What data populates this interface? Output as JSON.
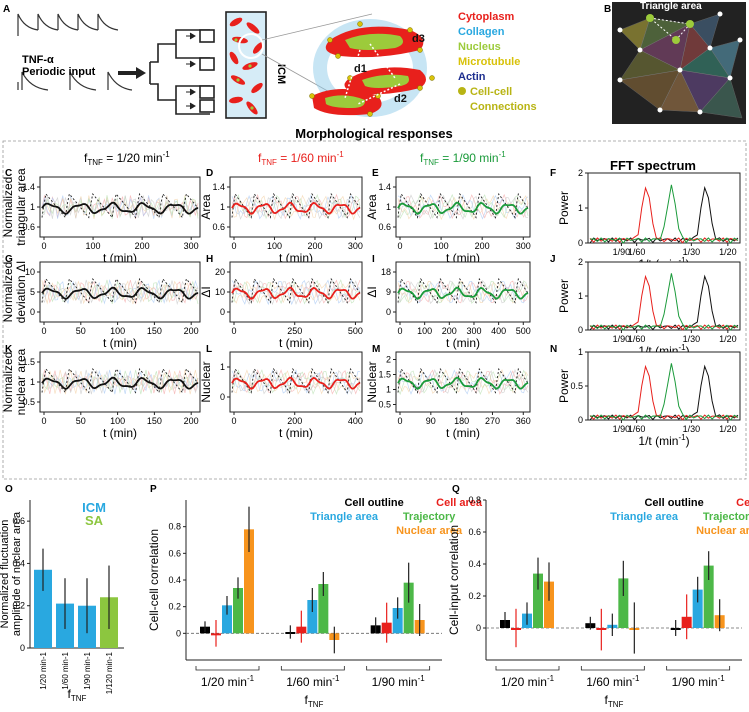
{
  "panel_labels": [
    "A",
    "B",
    "C",
    "D",
    "E",
    "F",
    "G",
    "H",
    "I",
    "J",
    "K",
    "L",
    "M",
    "N",
    "O",
    "P",
    "Q"
  ],
  "panel_a": {
    "input_label_1": "TNF-α",
    "input_label_2": "Periodic input",
    "chamber_label": "ICM",
    "legend": [
      {
        "text": "Cytoplasm",
        "color": "#e8201c"
      },
      {
        "text": "Collagen",
        "color": "#29a8e0"
      },
      {
        "text": "Nucleus",
        "color": "#9ccb3b"
      },
      {
        "text": "Microtubule",
        "color": "#d8c20a"
      },
      {
        "text": "Actin",
        "color": "#1d2f8f"
      },
      {
        "text": "Cell-cell",
        "color": "#b8b414"
      },
      {
        "text": "Connections",
        "color": "#b8b414"
      }
    ],
    "distances": [
      "d1",
      "d2",
      "d3"
    ]
  },
  "panel_b": {
    "title": "Triangle area"
  },
  "section_title": "Morphological responses",
  "col_titles": [
    {
      "prefix": "f",
      "sub": "TNF",
      "text": " = 1/20 min",
      "sup": "-1",
      "color": "#000000"
    },
    {
      "prefix": "f",
      "sub": "TNF",
      "text": " = 1/60 min",
      "sup": "-1",
      "color": "#e8201c"
    },
    {
      "prefix": "f",
      "sub": "TNF",
      "text": " = 1/90 min",
      "sup": "-1",
      "color": "#1a9a3a"
    }
  ],
  "fft_title": "FFT spectrum",
  "rows": [
    {
      "ylabel_lines": [
        "Normalized",
        "triangular area"
      ],
      "ylabel_short": "Area",
      "yticks": [
        "0.6",
        "1",
        "1.4"
      ],
      "xlabel": "t (min)",
      "xticks": [
        [
          "0",
          "100",
          "200",
          "300"
        ],
        [
          "0",
          "100",
          "200",
          "300"
        ],
        [
          "0",
          "100",
          "200",
          "300"
        ]
      ]
    },
    {
      "ylabel_lines": [
        "Normalized",
        "deviation ΔI"
      ],
      "ylabel_short": "ΔI",
      "yticks_c": [
        "0",
        "5",
        "10"
      ],
      "yticks_h": [
        "0",
        "10",
        "20"
      ],
      "yticks_i": [
        "0",
        "9",
        "18"
      ],
      "xlabel": "t (min)",
      "xticks": [
        [
          "0",
          "50",
          "100",
          "150",
          "200"
        ],
        [
          "0",
          "250",
          "500"
        ],
        [
          "0",
          "100",
          "200",
          "300",
          "400",
          "500"
        ]
      ]
    },
    {
      "ylabel_lines": [
        "Normalized",
        "nuclear area"
      ],
      "ylabel_short": "Nuclear",
      "yticks_k": [
        "0.5",
        "1",
        "1.5"
      ],
      "yticks_l": [
        "0",
        "1"
      ],
      "yticks_m": [
        "0.5",
        "1",
        "1.5",
        "2"
      ],
      "xlabel": "t (min)",
      "xticks": [
        [
          "0",
          "50",
          "100",
          "150",
          "200"
        ],
        [
          "0",
          "200",
          "400"
        ],
        [
          "0",
          "90",
          "180",
          "270",
          "360"
        ]
      ]
    }
  ],
  "fft": {
    "ylabel": "Power",
    "xlabel": "1/t (min",
    "xlabel_sup": "-1",
    "xticks": [
      "1/90",
      "1/60",
      "1/30",
      "1/20"
    ],
    "yticks_f": [
      "0",
      "1",
      "2"
    ],
    "yticks_j": [
      "0",
      "1",
      "2"
    ],
    "yticks_n": [
      "0",
      "0.5",
      "1"
    ]
  },
  "panel_o": {
    "ylabel_lines": [
      "Normalized fluctuation",
      "amplitude of nuclear area"
    ],
    "legend": [
      {
        "text": "ICM",
        "color": "#29a8e0"
      },
      {
        "text": "SA",
        "color": "#8cc63f"
      }
    ],
    "yticks": [
      "0",
      "0.2",
      "0.4",
      "0.6"
    ],
    "categories": [
      "1/20 min-1",
      "1/60 min-1",
      "1/90 min-1",
      "1/120 min-1"
    ],
    "xlabel": "f",
    "xlabel_sub": "TNF"
  },
  "panel_p": {
    "ylabel": "Cell-cell correlation",
    "yticks": [
      "0",
      "0.2",
      "0.4",
      "0.6",
      "0.8"
    ],
    "legend": [
      {
        "text": "Cell outline",
        "color": "#000000"
      },
      {
        "text": "Cell area",
        "color": "#e8201c"
      },
      {
        "text": "Triangle area",
        "color": "#29a8e0"
      },
      {
        "text": "Trajectory",
        "color": "#4db848"
      },
      {
        "text": "Nuclear area",
        "color": "#f7941d"
      }
    ],
    "groups": [
      "1/20 min",
      "1/60 min",
      "1/90 min"
    ],
    "group_sup": "-1",
    "xlabel": "f",
    "xlabel_sub": "TNF"
  },
  "panel_q": {
    "ylabel": "Cell-input correlation",
    "yticks": [
      "0",
      "0.2",
      "0.4",
      "0.6",
      "0.8"
    ],
    "legend": [
      {
        "text": "Cell outline",
        "color": "#000000"
      },
      {
        "text": "Cell area",
        "color": "#e8201c"
      },
      {
        "text": "Triangle area",
        "color": "#29a8e0"
      },
      {
        "text": "Trajectory",
        "color": "#4db848"
      },
      {
        "text": "Nuclear area",
        "color": "#f7941d"
      }
    ],
    "groups": [
      "1/20 min",
      "1/60 min",
      "1/90 min"
    ],
    "group_sup": "-1",
    "xlabel": "f",
    "xlabel_sub": "TNF"
  },
  "chart_data": [
    {
      "panel": "O",
      "type": "bar",
      "categories": [
        "1/20 min-1",
        "1/60 min-1",
        "1/90 min-1",
        "1/120 min-1"
      ],
      "series": [
        {
          "values": [
            0.37,
            0.21,
            0.2,
            0.24
          ],
          "errors": [
            0.1,
            0.12,
            0.13,
            0.15
          ],
          "colors": [
            "#29a8e0",
            "#29a8e0",
            "#29a8e0",
            "#8cc63f"
          ]
        }
      ],
      "ylim": [
        0,
        0.7
      ]
    },
    {
      "panel": "P",
      "type": "bar",
      "categories": [
        "1/20 min-1",
        "1/60 min-1",
        "1/90 min-1"
      ],
      "series": [
        {
          "name": "Cell outline",
          "values": [
            0.05,
            0.01,
            0.06
          ],
          "errors": [
            0.04,
            0.05,
            0.06
          ]
        },
        {
          "name": "Cell area",
          "values": [
            0.0,
            0.05,
            0.08
          ],
          "errors": [
            0.1,
            0.12,
            0.15
          ]
        },
        {
          "name": "Triangle area",
          "values": [
            0.21,
            0.25,
            0.19
          ],
          "errors": [
            0.07,
            0.09,
            0.08
          ]
        },
        {
          "name": "Trajectory",
          "values": [
            0.34,
            0.37,
            0.38
          ],
          "errors": [
            0.08,
            0.09,
            0.15
          ]
        },
        {
          "name": "Nuclear area",
          "values": [
            0.78,
            -0.05,
            0.1
          ],
          "errors": [
            0.17,
            0.1,
            0.12
          ]
        }
      ],
      "ylim": [
        -0.2,
        1.0
      ]
    },
    {
      "panel": "Q",
      "type": "bar",
      "categories": [
        "1/20 min-1",
        "1/60 min-1",
        "1/90 min-1"
      ],
      "series": [
        {
          "name": "Cell outline",
          "values": [
            0.05,
            0.03,
            0.0
          ],
          "errors": [
            0.05,
            0.04,
            0.05
          ]
        },
        {
          "name": "Cell area",
          "values": [
            0.0,
            -0.01,
            0.07
          ],
          "errors": [
            0.12,
            0.13,
            0.14
          ]
        },
        {
          "name": "Triangle area",
          "values": [
            0.09,
            0.02,
            0.24
          ],
          "errors": [
            0.07,
            0.07,
            0.08
          ]
        },
        {
          "name": "Trajectory",
          "values": [
            0.34,
            0.31,
            0.39
          ],
          "errors": [
            0.1,
            0.11,
            0.09
          ]
        },
        {
          "name": "Nuclear area",
          "values": [
            0.29,
            0.0,
            0.08
          ],
          "errors": [
            0.12,
            0.16,
            0.1
          ]
        }
      ],
      "ylim": [
        -0.2,
        0.8
      ]
    }
  ]
}
